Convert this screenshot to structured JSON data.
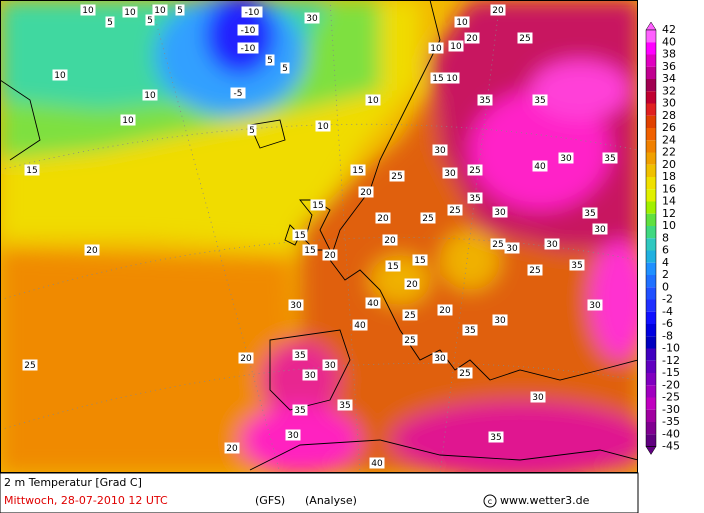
{
  "footer": {
    "parameter": "2 m Temperatur [Grad C]",
    "date": "Mittwoch, 28-07-2010  12 UTC",
    "model": "(GFS)",
    "run": "(Analyse)",
    "source": "www.wetter3.de"
  },
  "legend": {
    "levels": [
      42,
      40,
      38,
      36,
      34,
      32,
      30,
      28,
      26,
      24,
      22,
      20,
      18,
      16,
      14,
      12,
      10,
      8,
      6,
      4,
      2,
      0,
      -2,
      -4,
      -6,
      -8,
      -10,
      -12,
      -15,
      -20,
      -25,
      -30,
      -35,
      -40,
      -45
    ],
    "colors": [
      "#ff60ff",
      "#ff00ff",
      "#e000c0",
      "#c00090",
      "#a00050",
      "#c00030",
      "#e02020",
      "#e04000",
      "#f06000",
      "#f08000",
      "#f0a000",
      "#f0c000",
      "#f0e000",
      "#e0f000",
      "#a0f000",
      "#60e040",
      "#40d880",
      "#30c8c0",
      "#20b0e0",
      "#2090ff",
      "#2070ff",
      "#2050ff",
      "#2030ff",
      "#1010ff",
      "#0000e0",
      "#0000c0",
      "#4000c0",
      "#6000c0",
      "#8000c0",
      "#a000c0",
      "#c000c0",
      "#a000a0",
      "#800090",
      "#600080"
    ]
  },
  "map": {
    "labels": [
      10,
      10,
      5,
      10,
      5,
      5,
      -10,
      -10,
      -10,
      -5,
      30,
      5,
      5,
      10,
      10,
      20,
      20,
      25,
      10,
      10,
      5,
      10,
      10,
      10,
      15,
      10,
      10,
      15,
      20,
      25,
      35,
      35,
      30,
      35,
      30,
      40,
      30,
      35,
      35,
      15,
      15,
      15,
      15,
      20,
      20,
      25,
      30,
      25,
      25,
      30,
      20,
      20,
      15,
      20,
      25,
      15,
      25,
      30,
      30,
      35,
      30,
      25,
      20,
      30,
      35,
      40,
      40,
      35,
      30,
      30,
      30,
      35,
      35,
      25,
      20,
      20,
      25,
      30,
      25,
      30,
      40,
      35,
      30
    ]
  }
}
